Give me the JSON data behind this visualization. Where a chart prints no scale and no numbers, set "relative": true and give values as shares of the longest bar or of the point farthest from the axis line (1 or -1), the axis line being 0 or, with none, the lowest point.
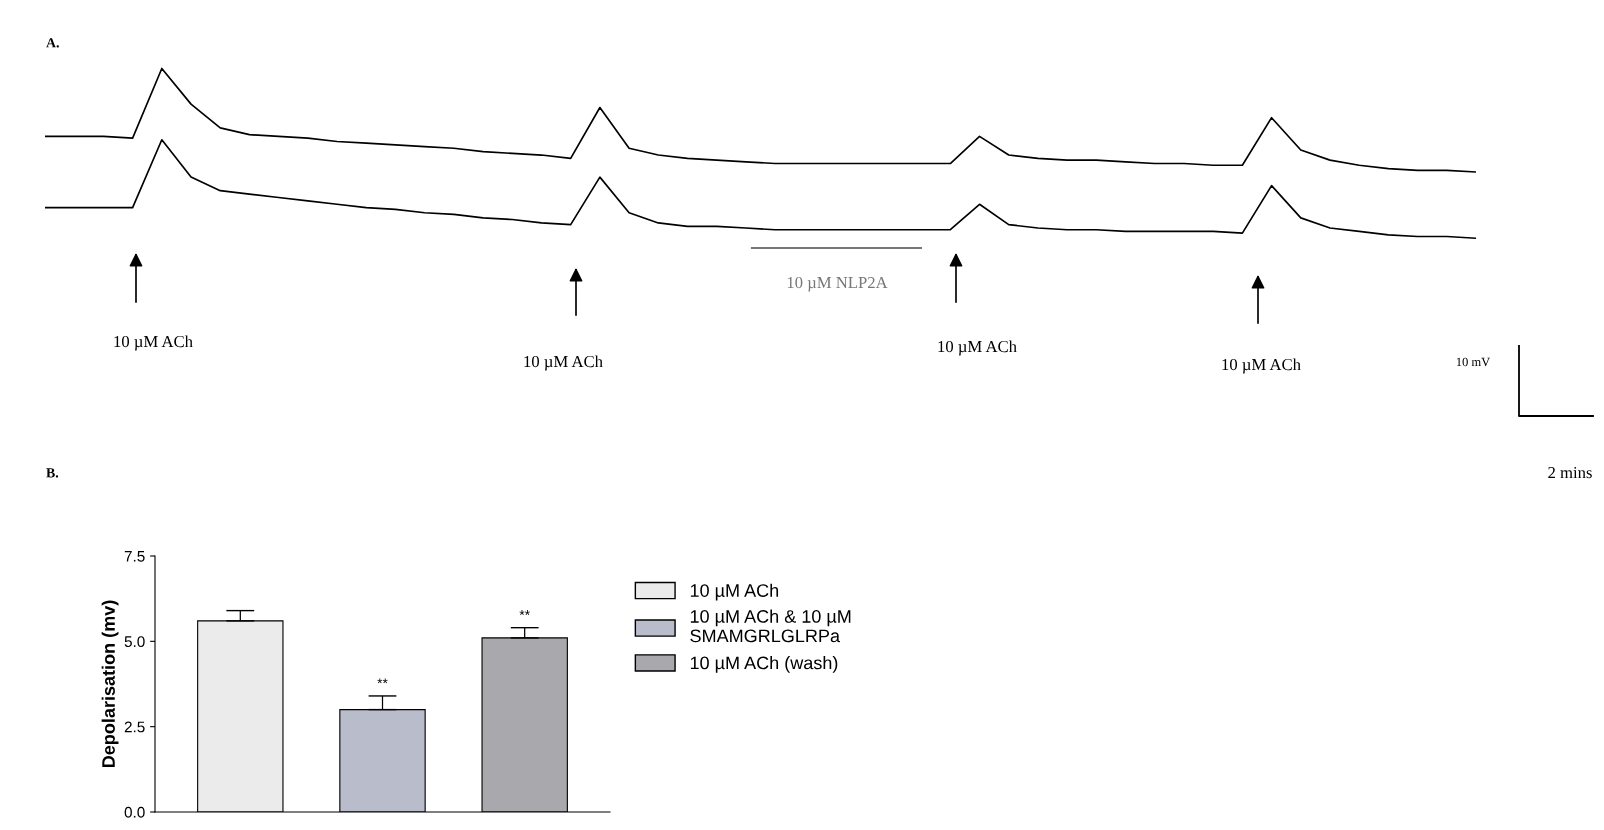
{
  "chart_data": [
    {
      "type": "line",
      "title": "A.",
      "relative": true,
      "line_style": "solid",
      "marker": "none",
      "grid": false,
      "categories": [
        null,
        null,
        null,
        null,
        null,
        null,
        null,
        null,
        null,
        null,
        null,
        null,
        null,
        null,
        null,
        null,
        null,
        null,
        null,
        null,
        null,
        null,
        null,
        null,
        null,
        null,
        null,
        null,
        null,
        null,
        null,
        null,
        null,
        null,
        null,
        null,
        null,
        null,
        null,
        null,
        null,
        null,
        null,
        null,
        null,
        null,
        null,
        null,
        null,
        null
      ],
      "series": [
        {
          "color": "#000000",
          "values": [
            0.6,
            0.6,
            0.6,
            0.59,
            1.0,
            0.79,
            0.65,
            0.61,
            0.6,
            0.59,
            0.57,
            0.56,
            0.55,
            0.54,
            0.53,
            0.51,
            0.5,
            0.49,
            0.47,
            0.77,
            0.53,
            0.49,
            0.47,
            0.46,
            0.45,
            0.44,
            0.44,
            0.44,
            0.44,
            0.44,
            0.44,
            0.44,
            0.6,
            0.49,
            0.47,
            0.46,
            0.46,
            0.45,
            0.44,
            0.44,
            0.43,
            0.43,
            0.71,
            0.52,
            0.46,
            0.43,
            0.41,
            0.4,
            0.4,
            0.39
          ]
        },
        {
          "color": "#000000",
          "values": [
            0.18,
            0.18,
            0.18,
            0.18,
            0.58,
            0.36,
            0.28,
            0.26,
            0.24,
            0.22,
            0.2,
            0.18,
            0.17,
            0.15,
            0.14,
            0.12,
            0.11,
            0.09,
            0.08,
            0.36,
            0.15,
            0.09,
            0.07,
            0.07,
            0.06,
            0.05,
            0.05,
            0.05,
            0.05,
            0.05,
            0.05,
            0.05,
            0.2,
            0.08,
            0.06,
            0.05,
            0.05,
            0.04,
            0.04,
            0.04,
            0.04,
            0.03,
            0.31,
            0.12,
            0.06,
            0.04,
            0.02,
            0.01,
            0.01,
            0.0
          ]
        }
      ],
      "annotations": [
        "10 µM ACh",
        "10 µM ACh",
        "10 µM NLP2A",
        "10 µM ACh",
        "10 µM ACh",
        "10 mV",
        "2 mins"
      ]
    },
    {
      "type": "bar",
      "title": "B.",
      "ylabel": "Depolarisation (mv)",
      "categories": [
        null,
        null,
        null
      ],
      "ylim": [
        0,
        7.5
      ],
      "yticks": [
        {
          "value": 0,
          "label": "0.0"
        },
        {
          "value": 2.5,
          "label": "2.5"
        },
        {
          "value": 5,
          "label": "5.0"
        },
        {
          "value": 7.5,
          "label": "7.5"
        }
      ],
      "grid": false,
      "legend": "right",
      "series": [
        {
          "name": "10 µM ACh",
          "color": "#ebebeb",
          "values": [
            5.6,
            null,
            null
          ],
          "errors": [
            0.3,
            null,
            null
          ]
        },
        {
          "name": "10 µM ACh & 10 µM\nSMAMGRLGLRPa",
          "color": "#b9bccb",
          "values": [
            null,
            3.0,
            null
          ],
          "errors": [
            null,
            0.4,
            null
          ]
        },
        {
          "name": "10 µM ACh (wash)",
          "color": "#a9a9ad",
          "values": [
            null,
            null,
            5.1
          ],
          "errors": [
            null,
            null,
            0.3
          ]
        }
      ],
      "annotations": [
        "**",
        "**"
      ]
    }
  ]
}
